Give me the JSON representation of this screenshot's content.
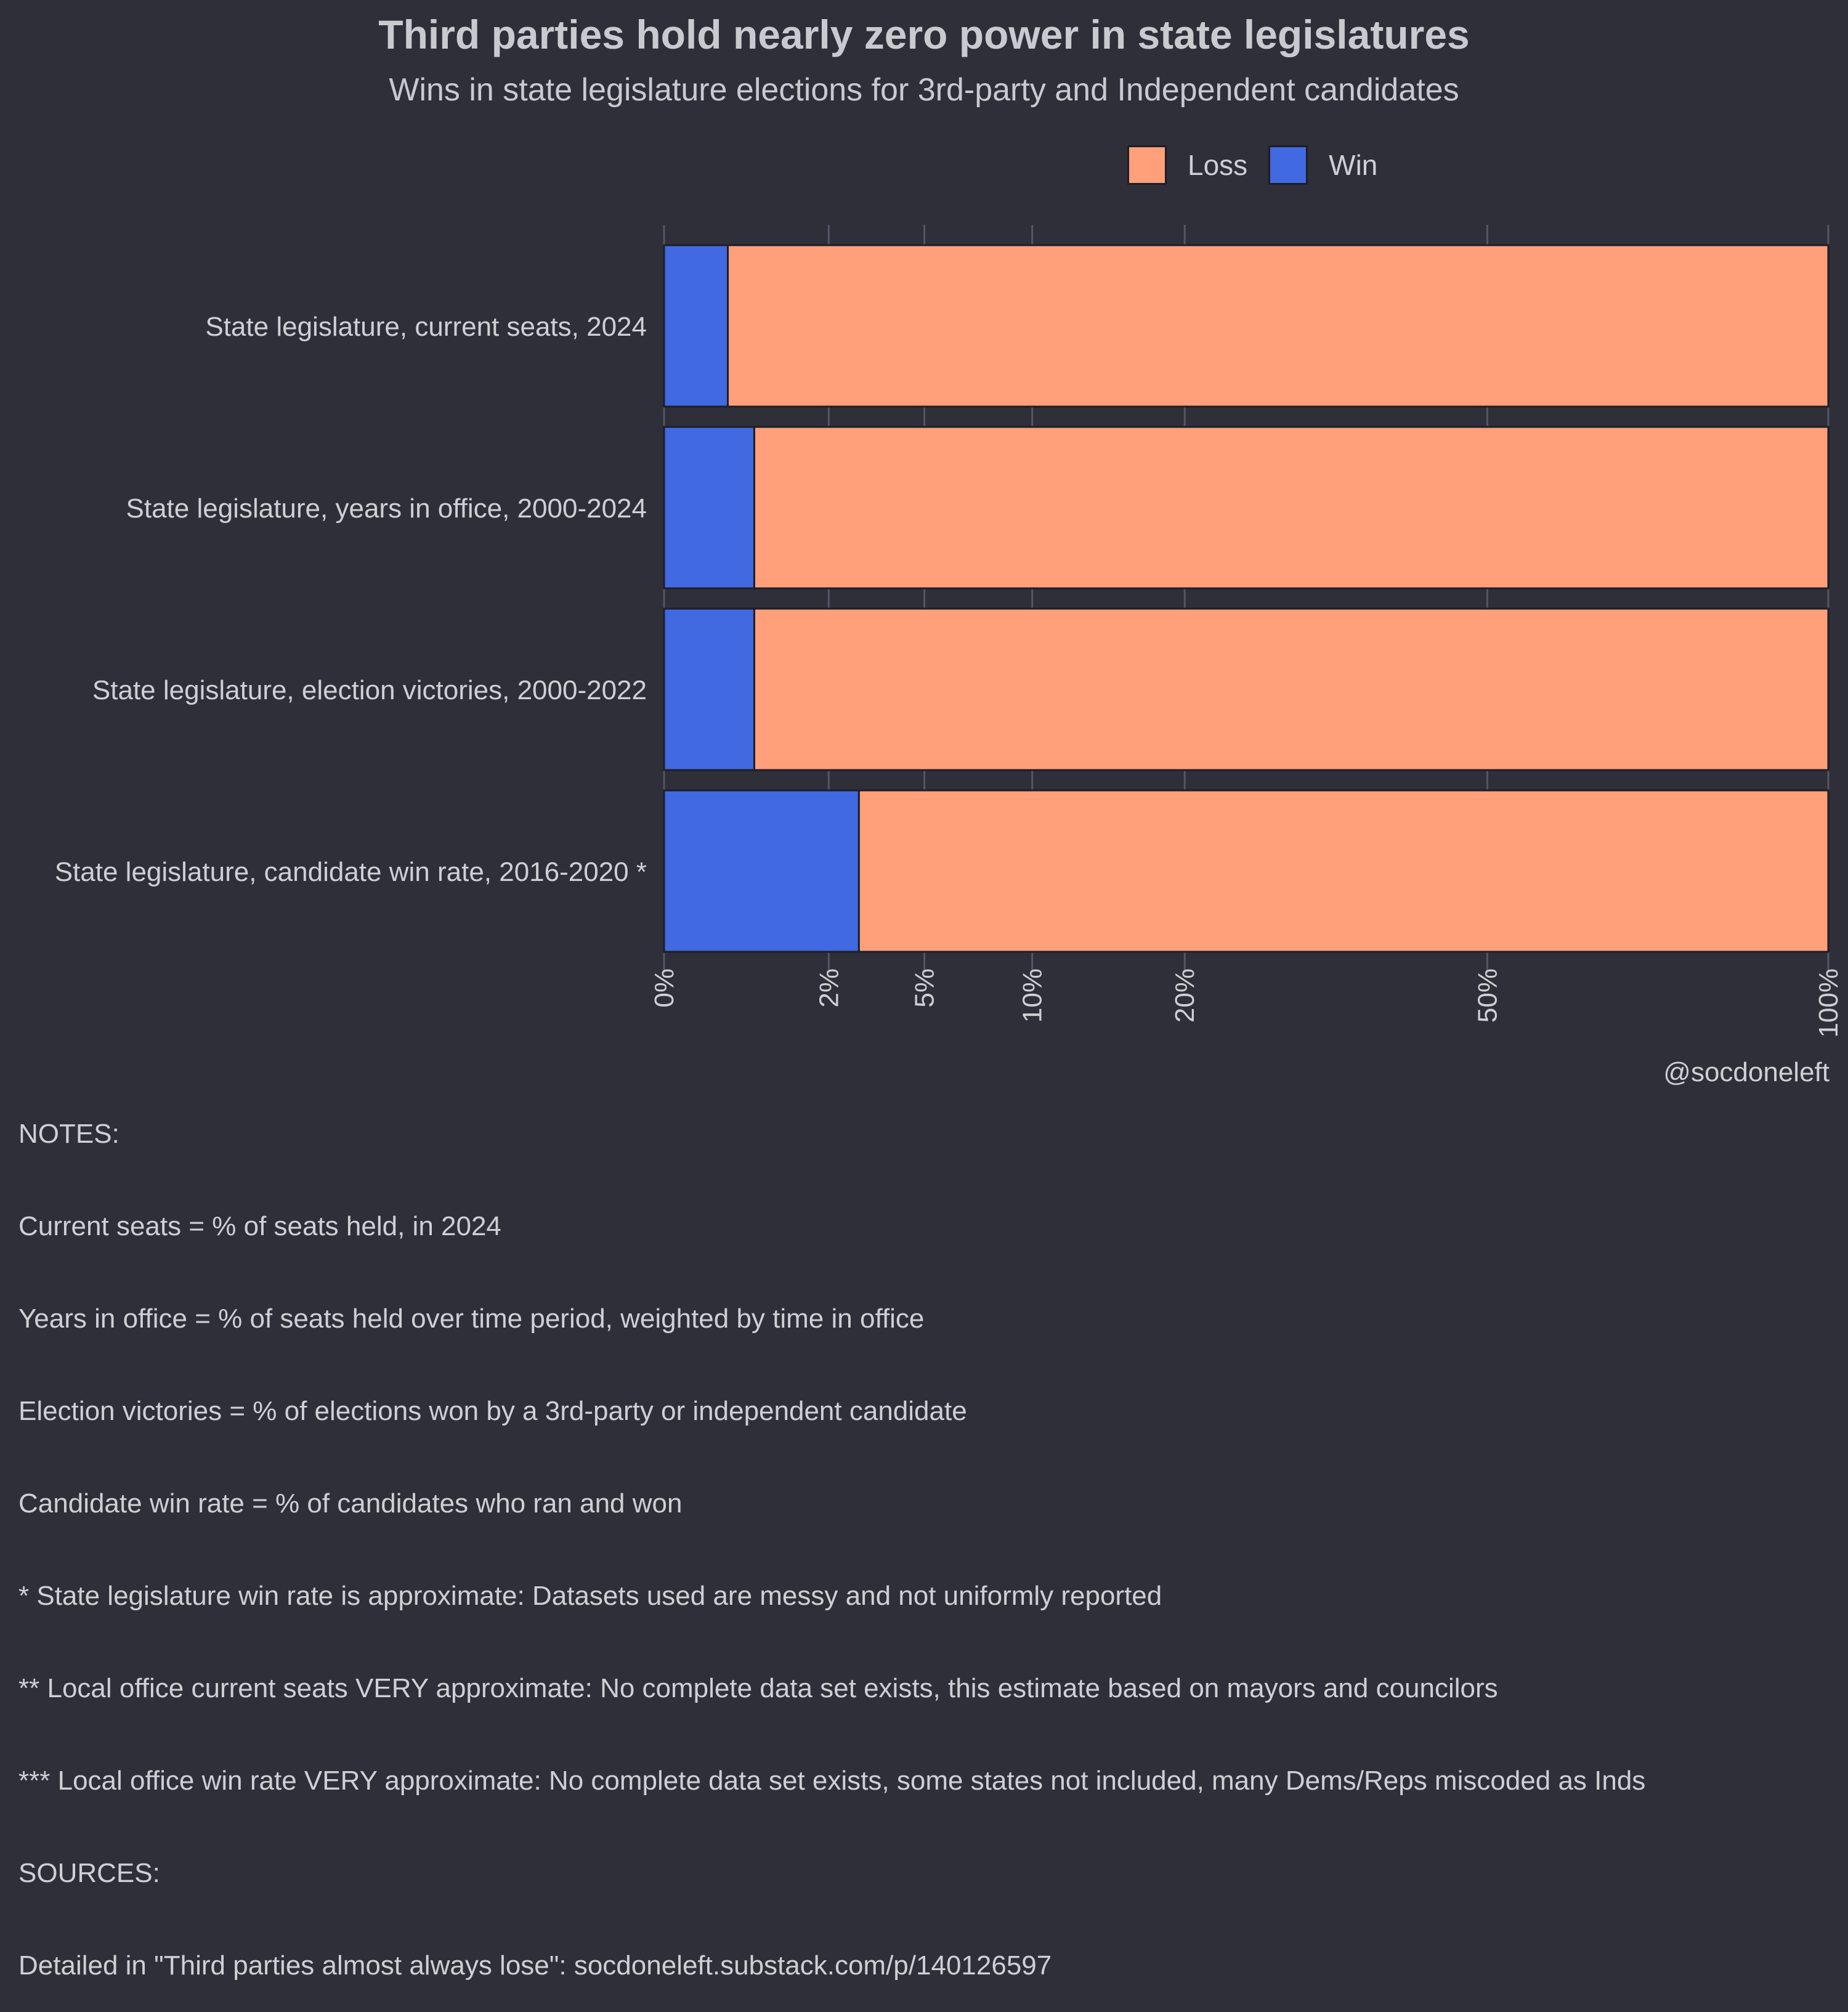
{
  "chart_data": {
    "type": "bar",
    "orientation": "horizontal",
    "stacked": true,
    "title": "Third parties hold nearly zero power in state legislatures",
    "subtitle": "Wins in state legislature elections for 3rd-party and Independent candidates",
    "categories": [
      "State legislature, current seats, 2024",
      "State legislature, years in office, 2000-2024",
      "State legislature, election victories, 2000-2022",
      "State legislature, candidate win rate, 2016-2020 *"
    ],
    "series": [
      {
        "name": "Win",
        "color": "#4169e1",
        "values": [
          0.3,
          0.6,
          0.6,
          2.8
        ]
      },
      {
        "name": "Loss",
        "color": "#ffa07a",
        "values": [
          99.7,
          99.4,
          99.4,
          97.2
        ]
      }
    ],
    "legend_order": [
      "Loss",
      "Win"
    ],
    "legend_position": "top",
    "xlim": [
      0,
      100
    ],
    "x_ticks": [
      0,
      2,
      5,
      10,
      20,
      50,
      100
    ],
    "x_tick_labels": [
      "0%",
      "2%",
      "5%",
      "10%",
      "20%",
      "50%",
      "100%"
    ],
    "x_scale": "sqrt",
    "xlabel": "",
    "ylabel": ""
  },
  "credit": "@socdoneleft",
  "notes": [
    "NOTES:",
    "Current seats = % of seats held, in 2024",
    "Years in office = % of seats held over time period, weighted by time in office",
    "Election victories = % of elections won by a 3rd-party or independent candidate",
    "Candidate win rate = % of candidates who ran and won",
    "* State legislature win rate is approximate: Datasets used are messy and not uniformly reported",
    "** Local office current seats VERY approximate: No complete data set exists, this estimate based on mayors and councilors",
    "*** Local office win rate VERY approximate: No complete data set exists, some states not included, many Dems/Reps miscoded as Inds",
    "SOURCES:",
    "Detailed in \"Third parties almost always lose\": socdoneleft.substack.com/p/140126597"
  ]
}
